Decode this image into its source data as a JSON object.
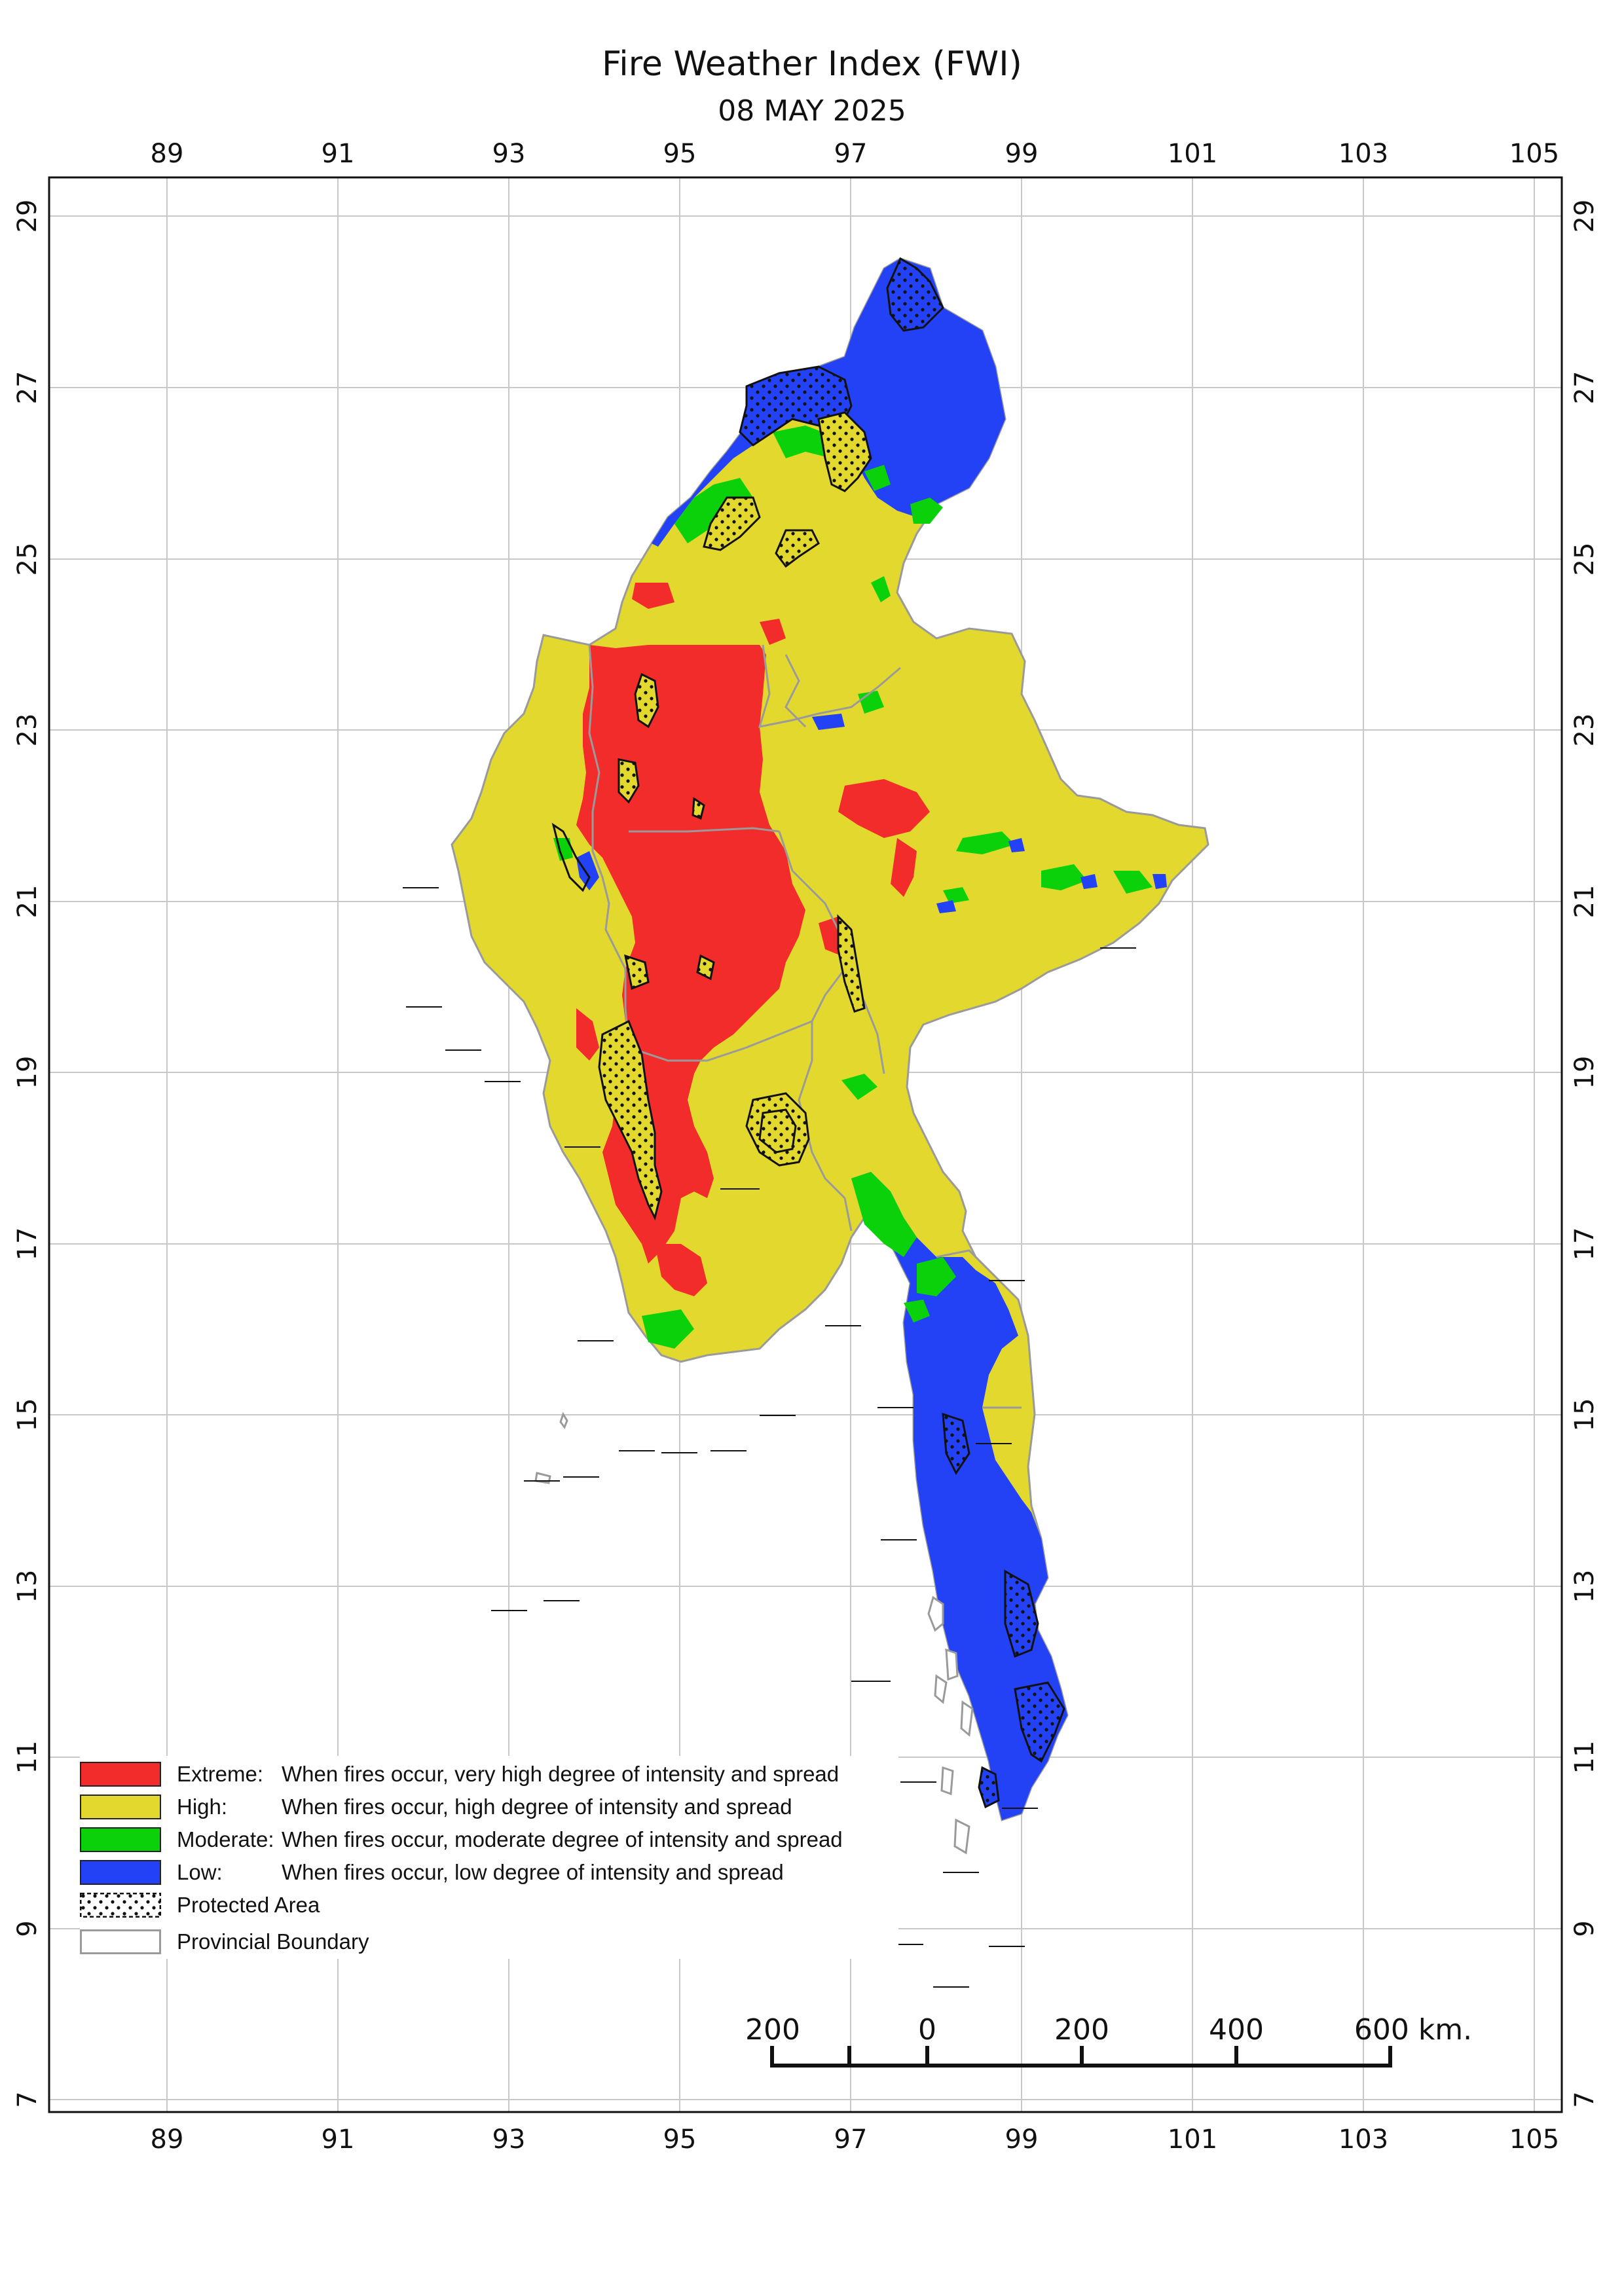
{
  "title": "Fire Weather Index (FWI)",
  "date": "08 MAY 2025",
  "longitude_ticks": [
    "89",
    "91",
    "93",
    "95",
    "97",
    "99",
    "101",
    "103",
    "105"
  ],
  "latitude_ticks": [
    "29",
    "27",
    "25",
    "23",
    "21",
    "19",
    "17",
    "15",
    "13",
    "11",
    "9",
    "7"
  ],
  "colors": {
    "extreme": "#f22b2b",
    "high": "#e3d92e",
    "moderate": "#0ad10a",
    "low": "#2342f5",
    "boundary": "#9a9a9a",
    "grid": "#c8c8c8"
  },
  "legend": [
    {
      "key": "Extreme:",
      "description": "When fires occur, very high degree of intensity and spread",
      "class": "extreme"
    },
    {
      "key": "High:",
      "description": "When fires occur, high degree of intensity and spread",
      "class": "high"
    },
    {
      "key": "Moderate:",
      "description": "When fires occur, moderate degree of intensity and spread",
      "class": "moderate"
    },
    {
      "key": "Low:",
      "description": "When fires occur, low degree of intensity and spread",
      "class": "low"
    },
    {
      "key": "Protected Area",
      "description": "",
      "class": "protected"
    },
    {
      "key": "Provincial Boundary",
      "description": "",
      "class": "boundary"
    }
  ],
  "scale_bar": {
    "labels": [
      "200",
      "0",
      "200",
      "400",
      "600 km."
    ]
  }
}
